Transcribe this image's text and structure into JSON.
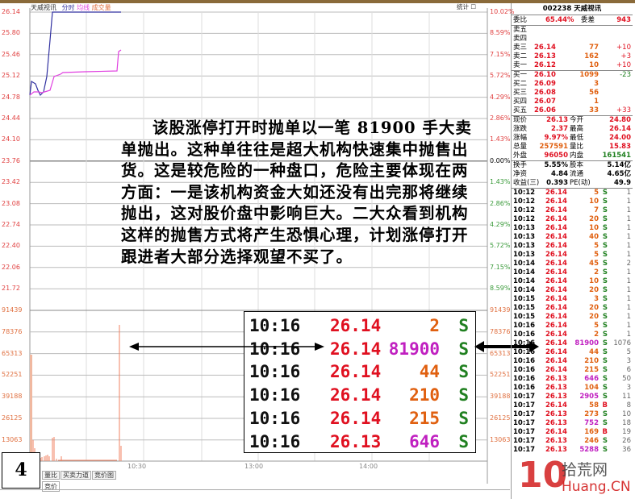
{
  "chart": {
    "stock_name": "天威视讯",
    "legend": [
      "分时",
      "均线",
      "成交量"
    ],
    "stats_label": "统计",
    "price_ticks": [
      "26.14",
      "25.80",
      "25.46",
      "25.12",
      "24.78",
      "24.44",
      "24.10",
      "23.76",
      "23.42",
      "23.08",
      "22.74",
      "22.40",
      "22.06",
      "21.72"
    ],
    "pct_ticks": [
      "10.02%",
      "8.59%",
      "7.15%",
      "5.72%",
      "4.29%",
      "2.86%",
      "1.43%",
      "0.00%",
      "1.43%",
      "2.86%",
      "4.29%",
      "5.72%",
      "7.15%",
      "8.59%"
    ],
    "vol_ticks": [
      "91439",
      "78376",
      "65313",
      "52251",
      "39188",
      "26125",
      "13063"
    ],
    "time_ticks": [
      "10:30",
      "13:00",
      "14:00"
    ],
    "price_line_color": "#3030a0",
    "avg_line_color": "#e040e0",
    "volume_color": "#f08060"
  },
  "annotation": {
    "text": "该股涨停打开时抛单以一笔 81900 手大卖单抛出。这种单往往是超大机构快速集中抛售出货。这是较危险的一种盘口，危险主要体现在两方面：一是该机构资金大如还没有出完那将继续抛出，这对股价盘中影响巨大。二大众看到机构这样的抛售方式将产生恐惧心理，计划涨停打开跟进者大部分选择观望不买了。",
    "page_number": "4",
    "zoom_rows": [
      {
        "time": "10:16",
        "price": "26.14",
        "vol": "2",
        "side": "S",
        "vc": "org"
      },
      {
        "time": "10:16",
        "price": "26.14",
        "vol": "81900",
        "side": "S",
        "vc": "pur"
      },
      {
        "time": "10:16",
        "price": "26.14",
        "vol": "44",
        "side": "S",
        "vc": "org"
      },
      {
        "time": "10:16",
        "price": "26.14",
        "vol": "210",
        "side": "S",
        "vc": "org"
      },
      {
        "time": "10:16",
        "price": "26.14",
        "vol": "215",
        "side": "S",
        "vc": "org"
      },
      {
        "time": "10:16",
        "price": "26.13",
        "vol": "646",
        "side": "S",
        "vc": "pur"
      }
    ]
  },
  "bottom_tabs": [
    "量比",
    "买卖力道",
    "竞价图"
  ],
  "bottom_tab2": "竞价",
  "panel": {
    "title": "002238 天威视讯",
    "weibi_label": "委比",
    "weibi": "65.44%",
    "weicha_label": "委差",
    "weicha": "943",
    "asks": [
      {
        "l": "卖五",
        "p": "",
        "v": "",
        "c": ""
      },
      {
        "l": "卖四",
        "p": "",
        "v": "",
        "c": ""
      },
      {
        "l": "卖三",
        "p": "26.14",
        "v": "77",
        "c": "+10"
      },
      {
        "l": "卖二",
        "p": "26.13",
        "v": "162",
        "c": "+3"
      },
      {
        "l": "卖一",
        "p": "26.12",
        "v": "10",
        "c": "+10"
      }
    ],
    "bids": [
      {
        "l": "买一",
        "p": "26.10",
        "v": "1099",
        "c": "-23"
      },
      {
        "l": "买二",
        "p": "26.09",
        "v": "3",
        "c": ""
      },
      {
        "l": "买三",
        "p": "26.08",
        "v": "56",
        "c": ""
      },
      {
        "l": "买四",
        "p": "26.07",
        "v": "1",
        "c": ""
      },
      {
        "l": "买五",
        "p": "26.06",
        "v": "33",
        "c": "+33"
      }
    ],
    "quote": [
      [
        "现价",
        "26.13",
        "今开",
        "24.80"
      ],
      [
        "涨跌",
        "2.37",
        "最高",
        "26.14"
      ],
      [
        "涨幅",
        "9.97%",
        "最低",
        "24.00"
      ],
      [
        "总量",
        "257591",
        "量比",
        "15.83"
      ],
      [
        "外盘",
        "96050",
        "内盘",
        "161541"
      ]
    ],
    "info": [
      [
        "换手",
        "5.55%",
        "股本",
        "5.14亿"
      ],
      [
        "净资",
        "4.84",
        "流通",
        "4.65亿"
      ],
      [
        "收益(三)",
        "0.393",
        "PE(动)",
        "49.9"
      ]
    ],
    "trades": [
      [
        "10:12",
        "26.14",
        "5",
        "S",
        "1"
      ],
      [
        "10:12",
        "26.14",
        "10",
        "S",
        "1"
      ],
      [
        "10:12",
        "26.14",
        "7",
        "S",
        "1"
      ],
      [
        "10:12",
        "26.14",
        "20",
        "S",
        "1"
      ],
      [
        "10:13",
        "26.14",
        "10",
        "S",
        "1"
      ],
      [
        "10:13",
        "26.14",
        "40",
        "S",
        "1"
      ],
      [
        "10:13",
        "26.14",
        "5",
        "S",
        "1"
      ],
      [
        "10:13",
        "26.14",
        "5",
        "S",
        "1"
      ],
      [
        "10:14",
        "26.14",
        "45",
        "S",
        "2"
      ],
      [
        "10:14",
        "26.14",
        "2",
        "S",
        "1"
      ],
      [
        "10:14",
        "26.14",
        "10",
        "S",
        "1"
      ],
      [
        "10:14",
        "26.14",
        "20",
        "S",
        "1"
      ],
      [
        "10:15",
        "26.14",
        "3",
        "S",
        "1"
      ],
      [
        "10:15",
        "26.14",
        "20",
        "S",
        "1"
      ],
      [
        "10:15",
        "26.14",
        "20",
        "S",
        "1"
      ],
      [
        "10:16",
        "26.14",
        "5",
        "S",
        "1"
      ],
      [
        "10:16",
        "26.14",
        "2",
        "S",
        "1"
      ],
      [
        "10:16",
        "26.14",
        "81900",
        "S",
        "1076"
      ],
      [
        "10:16",
        "26.14",
        "44",
        "S",
        "5"
      ],
      [
        "10:16",
        "26.14",
        "210",
        "S",
        "3"
      ],
      [
        "10:16",
        "26.14",
        "215",
        "S",
        "6"
      ],
      [
        "10:16",
        "26.13",
        "646",
        "S",
        "50"
      ],
      [
        "10:16",
        "26.13",
        "104",
        "S",
        "3"
      ],
      [
        "10:17",
        "26.13",
        "2905",
        "S",
        "11"
      ],
      [
        "10:17",
        "26.14",
        "58",
        "B",
        "8"
      ],
      [
        "10:17",
        "26.13",
        "273",
        "S",
        "10"
      ],
      [
        "10:17",
        "26.13",
        "752",
        "S",
        "18"
      ],
      [
        "10:17",
        "26.14",
        "169",
        "B",
        "19"
      ],
      [
        "10:17",
        "26.13",
        "246",
        "S",
        "26"
      ],
      [
        "10:17",
        "26.13",
        "5288",
        "S",
        "36"
      ]
    ]
  },
  "watermark": {
    "num": "10",
    "cn": "拾荒网",
    "en": "Huang.CN"
  }
}
